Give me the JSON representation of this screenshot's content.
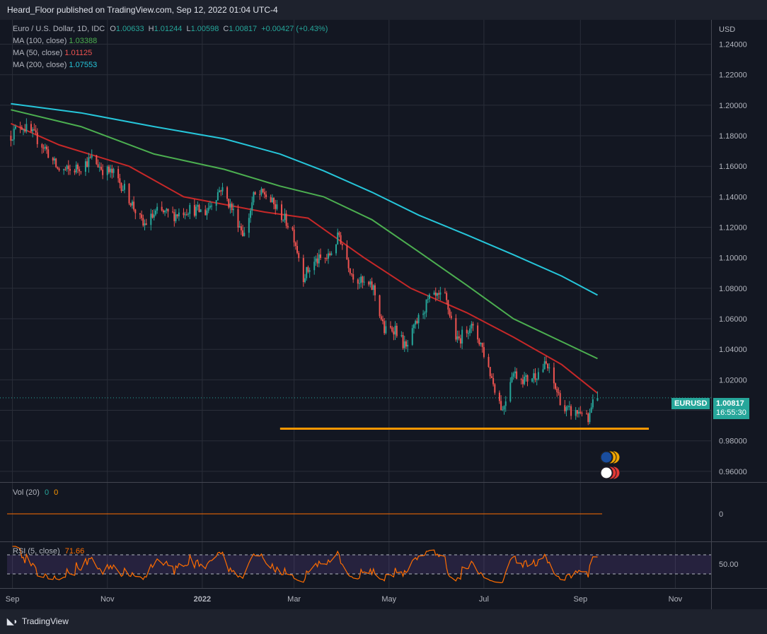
{
  "header": {
    "published_text": "Heard_Floor published on TradingView.com, Sep 12, 2022 01:04 UTC-4"
  },
  "legend": {
    "symbol": "Euro / U.S. Dollar, 1D, IDC",
    "o_label": "O",
    "o": "1.00633",
    "h_label": "H",
    "h": "1.01244",
    "l_label": "L",
    "l": "1.00598",
    "c_label": "C",
    "c": "1.00817",
    "change": "+0.00427 (+0.43%)",
    "ma100_label": "MA (100, close)",
    "ma100": "1.03388",
    "ma50_label": "MA (50, close)",
    "ma50": "1.01125",
    "ma200_label": "MA (200, close)",
    "ma200": "1.07553"
  },
  "vol_legend": {
    "label": "Vol (20)",
    "v1": "0",
    "v2": "0"
  },
  "rsi_legend": {
    "label": "RSI (5, close)",
    "value": "71.66"
  },
  "price_label": {
    "symbol": "EURUSD",
    "price": "1.00817",
    "countdown": "16:55:30"
  },
  "colors": {
    "up": "#26a69a",
    "down": "#ef5350",
    "ma100": "#4caf50",
    "ma50": "#c62828",
    "ma200": "#26c6da",
    "support": "#ff9800",
    "rsi": "#ff6d00"
  },
  "footer": {
    "brand": "TradingView"
  },
  "chart_data": {
    "type": "candlestick",
    "currency": "USD",
    "y_ticks": [
      "1.24000",
      "1.22000",
      "1.20000",
      "1.18000",
      "1.16000",
      "1.14000",
      "1.12000",
      "1.10000",
      "1.08000",
      "1.06000",
      "1.04000",
      "1.02000",
      "1.00000",
      "0.98000",
      "0.96000"
    ],
    "ylim": [
      0.953,
      1.256
    ],
    "x_ticks": [
      "Sep",
      "Nov",
      "2022",
      "Mar",
      "May",
      "Jul",
      "Sep",
      "Nov"
    ],
    "close_path": [
      [
        "2021-08-31",
        1.18
      ],
      [
        "2021-09-06",
        1.1875
      ],
      [
        "2021-09-14",
        1.181
      ],
      [
        "2021-09-22",
        1.172
      ],
      [
        "2021-09-30",
        1.158
      ],
      [
        "2021-10-08",
        1.157
      ],
      [
        "2021-10-15",
        1.16
      ],
      [
        "2021-10-22",
        1.165
      ],
      [
        "2021-10-29",
        1.158
      ],
      [
        "2021-11-05",
        1.155
      ],
      [
        "2021-11-12",
        1.145
      ],
      [
        "2021-11-24",
        1.121
      ],
      [
        "2021-12-03",
        1.13
      ],
      [
        "2021-12-14",
        1.128
      ],
      [
        "2021-12-23",
        1.132
      ],
      [
        "2022-01-03",
        1.13
      ],
      [
        "2022-01-13",
        1.146
      ],
      [
        "2022-01-20",
        1.132
      ],
      [
        "2022-01-28",
        1.115
      ],
      [
        "2022-02-03",
        1.14
      ],
      [
        "2022-02-10",
        1.142
      ],
      [
        "2022-02-18",
        1.132
      ],
      [
        "2022-02-28",
        1.118
      ],
      [
        "2022-03-07",
        1.088
      ],
      [
        "2022-03-15",
        1.098
      ],
      [
        "2022-03-23",
        1.1
      ],
      [
        "2022-03-30",
        1.115
      ],
      [
        "2022-04-07",
        1.09
      ],
      [
        "2022-04-14",
        1.083
      ],
      [
        "2022-04-21",
        1.08
      ],
      [
        "2022-04-28",
        1.052
      ],
      [
        "2022-05-05",
        1.054
      ],
      [
        "2022-05-12",
        1.04
      ],
      [
        "2022-05-19",
        1.058
      ],
      [
        "2022-05-27",
        1.073
      ],
      [
        "2022-06-06",
        1.074
      ],
      [
        "2022-06-14",
        1.045
      ],
      [
        "2022-06-22",
        1.056
      ],
      [
        "2022-06-29",
        1.044
      ],
      [
        "2022-07-07",
        1.018
      ],
      [
        "2022-07-13",
        1.0
      ],
      [
        "2022-07-19",
        1.025
      ],
      [
        "2022-07-28",
        1.02
      ],
      [
        "2022-08-04",
        1.024
      ],
      [
        "2022-08-10",
        1.03
      ],
      [
        "2022-08-15",
        1.017
      ],
      [
        "2022-08-22",
        1.0
      ],
      [
        "2022-08-29",
        0.998
      ],
      [
        "2022-09-02",
        1.0
      ],
      [
        "2022-09-06",
        0.992
      ],
      [
        "2022-09-09",
        1.004
      ],
      [
        "2022-09-12",
        1.00817
      ]
    ],
    "ma50_path": [
      [
        "2021-08-31",
        1.188
      ],
      [
        "2021-10-01",
        1.174
      ],
      [
        "2021-11-15",
        1.16
      ],
      [
        "2021-12-20",
        1.14
      ],
      [
        "2022-02-10",
        1.13
      ],
      [
        "2022-03-10",
        1.126
      ],
      [
        "2022-04-15",
        1.1
      ],
      [
        "2022-05-15",
        1.08
      ],
      [
        "2022-06-20",
        1.064
      ],
      [
        "2022-07-20",
        1.048
      ],
      [
        "2022-08-20",
        1.03
      ],
      [
        "2022-09-12",
        1.01125
      ]
    ],
    "ma100_path": [
      [
        "2021-08-31",
        1.197
      ],
      [
        "2021-10-15",
        1.186
      ],
      [
        "2021-12-01",
        1.168
      ],
      [
        "2022-01-15",
        1.158
      ],
      [
        "2022-02-20",
        1.147
      ],
      [
        "2022-03-20",
        1.14
      ],
      [
        "2022-04-20",
        1.125
      ],
      [
        "2022-05-20",
        1.104
      ],
      [
        "2022-06-20",
        1.082
      ],
      [
        "2022-07-20",
        1.06
      ],
      [
        "2022-08-20",
        1.045
      ],
      [
        "2022-09-12",
        1.03388
      ]
    ],
    "ma200_path": [
      [
        "2021-08-31",
        1.201
      ],
      [
        "2021-10-15",
        1.195
      ],
      [
        "2021-12-01",
        1.186
      ],
      [
        "2022-01-15",
        1.178
      ],
      [
        "2022-02-20",
        1.168
      ],
      [
        "2022-03-20",
        1.157
      ],
      [
        "2022-04-20",
        1.143
      ],
      [
        "2022-05-20",
        1.128
      ],
      [
        "2022-06-20",
        1.115
      ],
      [
        "2022-07-20",
        1.102
      ],
      [
        "2022-08-20",
        1.088
      ],
      [
        "2022-09-12",
        1.07553
      ]
    ],
    "support_level": 0.988,
    "support_from": "2022-02-20",
    "support_to": "2022-10-15",
    "last_price": 1.00817,
    "x_start": "2021-08-24",
    "x_end": "2022-11-24",
    "volume": {
      "y_tick": "0",
      "value": 0
    },
    "rsi": {
      "y_tick": "50.00",
      "bands": [
        70,
        30
      ],
      "last": 71.66
    }
  }
}
